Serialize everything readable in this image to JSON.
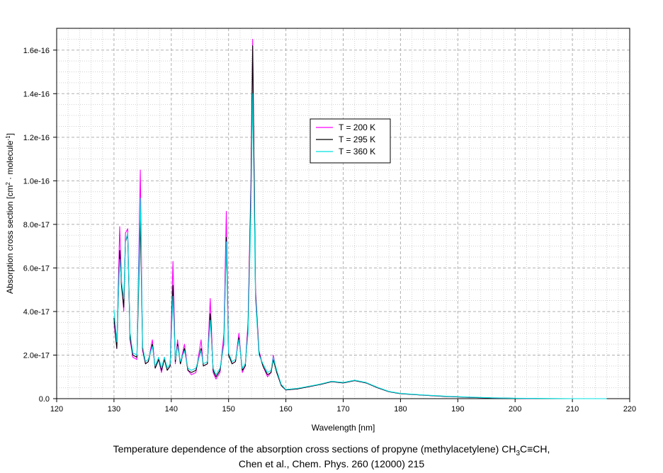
{
  "chart_data": {
    "type": "line",
    "xlabel": "Wavelength [nm]",
    "ylabel_parts": [
      "Absorption cross section [cm",
      "2",
      " · molecule",
      "-1",
      "]"
    ],
    "xlim": [
      120,
      220
    ],
    "ylim": [
      0,
      1.7e-16
    ],
    "xticks": [
      120,
      130,
      140,
      150,
      160,
      170,
      180,
      190,
      200,
      210,
      220
    ],
    "yticks": [
      0,
      2e-17,
      4e-17,
      6e-17,
      8e-17,
      1e-16,
      1.2e-16,
      1.4e-16,
      1.6e-16
    ],
    "ytick_labels": [
      "0.0",
      "2.0e-17",
      "4.0e-17",
      "6.0e-17",
      "8.0e-17",
      "1.0e-16",
      "1.2e-16",
      "1.4e-16",
      "1.6e-16"
    ],
    "grid": true,
    "legend_position": "upper-middle",
    "series": [
      {
        "name": "T = 200 K",
        "color": "#ff00ff",
        "x": [
          130,
          130.5,
          131,
          131.3,
          131.7,
          132,
          132.4,
          132.8,
          133.3,
          134,
          134.6,
          135,
          135.5,
          136,
          136.7,
          137.2,
          137.8,
          138.3,
          138.8,
          139.3,
          139.8,
          140.3,
          140.7,
          141.1,
          141.6,
          142.3,
          142.9,
          143.5,
          144.3,
          145.2,
          145.6,
          146.3,
          146.8,
          147.3,
          147.8,
          148.5,
          149.2,
          149.6,
          150,
          150.6,
          151.2,
          151.8,
          152.4,
          152.9,
          153.4,
          153.9,
          154.2,
          154.7,
          155.3,
          156,
          156.8,
          157.4,
          157.8,
          158.4,
          159.2,
          160,
          162,
          164,
          166,
          168,
          170,
          172,
          174,
          176,
          178,
          180,
          184,
          188,
          192,
          196,
          200,
          203.5
        ],
        "y": [
          3.5e-17,
          2.3e-17,
          7.9e-17,
          5.5e-17,
          4e-17,
          7.6e-17,
          7.8e-17,
          2.7e-17,
          1.9e-17,
          1.8e-17,
          1.05e-16,
          2.2e-17,
          1.6e-17,
          1.7e-17,
          2.7e-17,
          1.4e-17,
          1.8e-17,
          1.2e-17,
          1.9e-17,
          1.3e-17,
          1.5e-17,
          6.3e-17,
          1.6e-17,
          2.7e-17,
          1.6e-17,
          2.5e-17,
          1.3e-17,
          1.1e-17,
          1.2e-17,
          2.7e-17,
          1.5e-17,
          1.6e-17,
          4.6e-17,
          1.2e-17,
          9e-18,
          1.2e-17,
          3e-17,
          8.6e-17,
          2.1e-17,
          1.6e-17,
          1.7e-17,
          3e-17,
          1.2e-17,
          1.5e-17,
          3.5e-17,
          1e-16,
          1.65e-16,
          5e-17,
          2.2e-17,
          1.5e-17,
          1e-17,
          1.2e-17,
          2e-17,
          1.2e-17,
          6e-18,
          4e-18,
          4.5e-18,
          5.5e-18,
          6.5e-18,
          7.8e-18,
          7.2e-18,
          8.3e-18,
          7.2e-18,
          5e-18,
          3.2e-18,
          2.3e-18,
          1.6e-18,
          1e-18,
          6e-19,
          3e-19,
          1.5e-19,
          0
        ]
      },
      {
        "name": "T = 295 K",
        "color": "#000000",
        "x": [
          130,
          130.5,
          131,
          131.3,
          131.7,
          132,
          132.4,
          132.8,
          133.3,
          134,
          134.6,
          135,
          135.5,
          136,
          136.7,
          137.2,
          137.8,
          138.3,
          138.8,
          139.3,
          139.8,
          140.3,
          140.7,
          141.1,
          141.6,
          142.3,
          142.9,
          143.5,
          144.3,
          145.2,
          145.6,
          146.3,
          146.8,
          147.3,
          147.8,
          148.5,
          149.2,
          149.6,
          150,
          150.6,
          151.2,
          151.8,
          152.4,
          152.9,
          153.4,
          153.9,
          154.2,
          154.7,
          155.3,
          156,
          156.8,
          157.4,
          157.8,
          158.4,
          159.2,
          160,
          162,
          164,
          166,
          168,
          170,
          172,
          174,
          176,
          178,
          180,
          184,
          188,
          192,
          196,
          200,
          205,
          210,
          215,
          219
        ],
        "y": [
          3.7e-17,
          2.3e-17,
          6.8e-17,
          5.2e-17,
          4.2e-17,
          7.2e-17,
          7.5e-17,
          2.8e-17,
          2e-17,
          1.9e-17,
          8.2e-17,
          2.3e-17,
          1.6e-17,
          1.7e-17,
          2.5e-17,
          1.4e-17,
          1.8e-17,
          1.3e-17,
          1.8e-17,
          1.3e-17,
          1.5e-17,
          5.2e-17,
          1.7e-17,
          2.5e-17,
          1.6e-17,
          2.3e-17,
          1.3e-17,
          1.2e-17,
          1.3e-17,
          2.3e-17,
          1.5e-17,
          1.6e-17,
          3.9e-17,
          1.3e-17,
          1e-17,
          1.3e-17,
          2.6e-17,
          7.4e-17,
          2e-17,
          1.6e-17,
          1.7e-17,
          2.8e-17,
          1.3e-17,
          1.5e-17,
          3.2e-17,
          9.5e-17,
          1.62e-16,
          4.8e-17,
          2.1e-17,
          1.5e-17,
          1.1e-17,
          1.2e-17,
          1.8e-17,
          1.2e-17,
          6e-18,
          4e-18,
          4.5e-18,
          5.5e-18,
          6.5e-18,
          7.8e-18,
          7.2e-18,
          8.3e-18,
          7.2e-18,
          5e-18,
          3.2e-18,
          2.3e-18,
          1.6e-18,
          1e-18,
          6e-19,
          3e-19,
          1.5e-19,
          0,
          0,
          0,
          0
        ]
      },
      {
        "name": "T = 360 K",
        "color": "#00e0e0",
        "x": [
          130,
          130.5,
          131,
          131.3,
          131.7,
          132,
          132.4,
          132.8,
          133.3,
          134,
          134.6,
          135,
          135.5,
          136,
          136.7,
          137.2,
          137.8,
          138.3,
          138.8,
          139.3,
          139.8,
          140.3,
          140.7,
          141.1,
          141.6,
          142.3,
          142.9,
          143.5,
          144.3,
          145.2,
          145.6,
          146.3,
          146.8,
          147.3,
          147.8,
          148.5,
          149.2,
          149.6,
          150,
          150.6,
          151.2,
          151.8,
          152.4,
          152.9,
          153.4,
          153.9,
          154.2,
          154.7,
          155.3,
          156,
          156.8,
          157.4,
          157.8,
          158.4,
          159.2,
          160,
          162,
          164,
          166,
          168,
          170,
          172,
          174,
          176,
          178,
          180,
          184,
          188,
          192,
          196,
          200,
          205,
          210,
          216
        ],
        "y": [
          4.1e-17,
          2.6e-17,
          6.4e-17,
          5.4e-17,
          4.6e-17,
          7.2e-17,
          7.6e-17,
          3e-17,
          2.1e-17,
          2e-17,
          9.2e-17,
          2.4e-17,
          1.7e-17,
          1.8e-17,
          2.4e-17,
          1.5e-17,
          1.9e-17,
          1.4e-17,
          1.9e-17,
          1.4e-17,
          1.6e-17,
          4.7e-17,
          1.8e-17,
          2.4e-17,
          1.7e-17,
          2.2e-17,
          1.4e-17,
          1.3e-17,
          1.4e-17,
          2.2e-17,
          1.6e-17,
          1.7e-17,
          3.6e-17,
          1.4e-17,
          1.1e-17,
          1.4e-17,
          2.5e-17,
          7.2e-17,
          2.1e-17,
          1.7e-17,
          1.8e-17,
          2.7e-17,
          1.4e-17,
          1.6e-17,
          3e-17,
          8.8e-17,
          1.4e-16,
          4.6e-17,
          2e-17,
          1.6e-17,
          1.2e-17,
          1.3e-17,
          1.9e-17,
          1.3e-17,
          6.5e-18,
          4.2e-18,
          4.7e-18,
          5.7e-18,
          6.7e-18,
          8e-18,
          7.4e-18,
          8.5e-18,
          7.4e-18,
          5.2e-18,
          3.3e-18,
          2.4e-18,
          1.7e-18,
          1.1e-18,
          7e-19,
          4e-19,
          2e-19,
          1e-19,
          0,
          0
        ]
      }
    ]
  },
  "caption": {
    "line1_pre": "Temperature dependence of the absorption cross sections of propyne (methylacetylene) CH",
    "line1_sub": "3",
    "line1_post": "C≡CH,",
    "line2": "Chen et al., Chem. Phys. 260 (12000) 215"
  }
}
